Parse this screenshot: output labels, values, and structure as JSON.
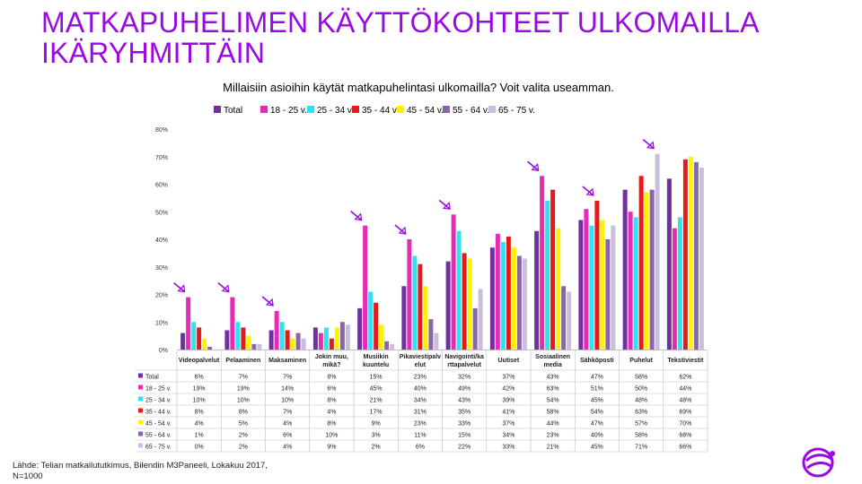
{
  "slide": {
    "title": "MATKAPUHELIMEN KÄYTTÖKOHTEET ULKOMAILLA IKÄRYHMITTÄIN",
    "source_line1": "Lähde: Telian matkailututkimus, Bilendin M3Paneeli, Lokakuu 2017,",
    "source_line2": "N=1000"
  },
  "chart_data": {
    "type": "bar",
    "title": "Millaisiin asioihin käytät matkapuhelintasi ulkomailla? Voit valita useamman.",
    "xlabel": "",
    "ylabel": "",
    "ylim": [
      0,
      80
    ],
    "yticks": [
      0,
      10,
      20,
      30,
      40,
      50,
      60,
      70,
      80
    ],
    "ytick_labels": [
      "0%",
      "10%",
      "20%",
      "30%",
      "40%",
      "50%",
      "60%",
      "70%",
      "80%"
    ],
    "grid": false,
    "legend_position": "top",
    "categories": [
      "Videopalvelut",
      "Pelaaminen",
      "Maksaminen",
      "Jokin muu, mikä?",
      "Musiikin kuuntelu",
      "Pikaviestipalvelut",
      "Navigointi/karttapalvelut",
      "Uutiset",
      "Sosiaalinen media",
      "Sähköposti",
      "Puhelut",
      "Tekstiviestit"
    ],
    "category_labels": [
      [
        "Videopalvelut"
      ],
      [
        "Pelaaminen"
      ],
      [
        "Maksaminen"
      ],
      [
        "Jokin muu,",
        "mikä?"
      ],
      [
        "Musiikin",
        "kuuntelu"
      ],
      [
        "Pikaviestipalv",
        "elut"
      ],
      [
        "Navigointi/ka",
        "rttapalvelut"
      ],
      [
        "Uutiset"
      ],
      [
        "Sosiaalinen",
        "media"
      ],
      [
        "Sähköposti"
      ],
      [
        "Puhelut"
      ],
      [
        "Tekstiviestit"
      ]
    ],
    "series": [
      {
        "name": "Total",
        "color": "#7030A0",
        "values": [
          6,
          7,
          7,
          8,
          15,
          23,
          32,
          37,
          43,
          47,
          58,
          62
        ],
        "labels": [
          "6%",
          "7%",
          "7%",
          "8%",
          "15%",
          "23%",
          "32%",
          "37%",
          "43%",
          "47%",
          "58%",
          "62%"
        ]
      },
      {
        "name": "18 - 25 v.",
        "color": "#E62BB5",
        "values": [
          19,
          19,
          14,
          6,
          45,
          40,
          49,
          42,
          63,
          51,
          50,
          44
        ],
        "labels": [
          "19%",
          "19%",
          "14%",
          "6%",
          "45%",
          "40%",
          "49%",
          "42%",
          "63%",
          "51%",
          "50%",
          "44%"
        ]
      },
      {
        "name": "25 - 34 v.",
        "color": "#33E0F0",
        "values": [
          10,
          10,
          10,
          8,
          21,
          34,
          43,
          39,
          54,
          45,
          48,
          48
        ],
        "labels": [
          "10%",
          "10%",
          "10%",
          "8%",
          "21%",
          "34%",
          "43%",
          "39%",
          "54%",
          "45%",
          "48%",
          "48%"
        ]
      },
      {
        "name": "35 - 44 v.",
        "color": "#E41B1B",
        "values": [
          8,
          8,
          7,
          4,
          17,
          31,
          35,
          41,
          58,
          54,
          63,
          69
        ],
        "labels": [
          "8%",
          "8%",
          "7%",
          "4%",
          "17%",
          "31%",
          "35%",
          "41%",
          "58%",
          "54%",
          "63%",
          "69%"
        ]
      },
      {
        "name": "45 - 54 v.",
        "color": "#FFF200",
        "values": [
          4,
          5,
          4,
          8,
          9,
          23,
          33,
          37,
          44,
          47,
          57,
          70
        ],
        "labels": [
          "4%",
          "5%",
          "4%",
          "8%",
          "9%",
          "23%",
          "33%",
          "37%",
          "44%",
          "47%",
          "57%",
          "70%"
        ]
      },
      {
        "name": "55 - 64 v.",
        "color": "#8866AA",
        "values": [
          1,
          2,
          6,
          10,
          3,
          11,
          15,
          34,
          23,
          40,
          58,
          68
        ],
        "labels": [
          "1%",
          "2%",
          "6%",
          "10%",
          "3%",
          "11%",
          "15%",
          "34%",
          "23%",
          "40%",
          "58%",
          "68%"
        ]
      },
      {
        "name": "65 - 75 v.",
        "color": "#C9BEDC",
        "values": [
          0,
          2,
          4,
          9,
          2,
          6,
          22,
          33,
          21,
          45,
          71,
          66
        ],
        "labels": [
          "0%",
          "2%",
          "4%",
          "9%",
          "2%",
          "6%",
          "22%",
          "33%",
          "21%",
          "45%",
          "71%",
          "66%"
        ]
      }
    ],
    "annotations": {
      "highlight_arrows": "Videopalvelut: 18 - 25 v.; Pelaaminen: 18 - 25 v.; Maksaminen: 18 - 25 v.; Musiikin kuuntelu: 18 - 25 v.; Pikaviestipalvelut: 18 - 25 v.; Navigointi/karttapalvelut: 18 - 25 v.; Sosiaalinen media: 18 - 25 v.; Sähköposti: 35 - 44 v.; Puhelut: 65 - 75 v.",
      "arrow_color": "#990AE3"
    }
  },
  "logo": {
    "color": "#990AE3",
    "icon": "telia-pebble-icon"
  }
}
